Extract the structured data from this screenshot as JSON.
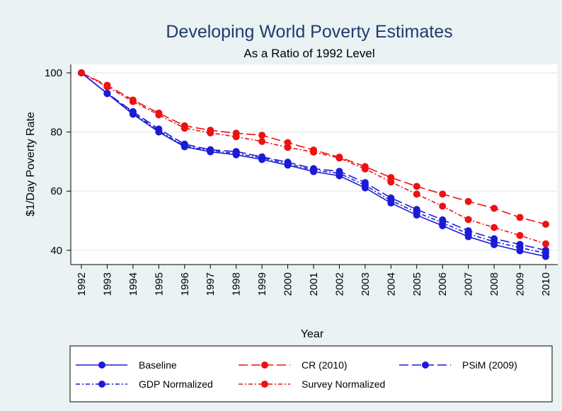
{
  "chart_data": {
    "type": "line",
    "title": "Developing World Poverty Estimates",
    "subtitle": "As a Ratio of 1992 Level",
    "xlabel": "Year",
    "ylabel": "$1/Day Poverty Rate",
    "ylim": [
      37,
      102
    ],
    "yticks": [
      40,
      60,
      80,
      100
    ],
    "x": [
      "1992",
      "1993",
      "1994",
      "1995",
      "1996",
      "1997",
      "1998",
      "1999",
      "2000",
      "2001",
      "2002",
      "2003",
      "2004",
      "2005",
      "2006",
      "2007",
      "2008",
      "2009",
      "2010"
    ],
    "grid": true,
    "legend_position": "bottom",
    "series": [
      {
        "name": "Baseline",
        "color": "#1b1bd6",
        "dash": "solid",
        "values": [
          100,
          93,
          86,
          80,
          75,
          73.3,
          72.3,
          70.7,
          68.8,
          66.6,
          65.2,
          61.1,
          56.0,
          51.9,
          48.3,
          44.6,
          41.9,
          39.8,
          37.9
        ]
      },
      {
        "name": "CR (2010)",
        "color": "#ee1111",
        "dash": "longdash",
        "values": [
          100,
          95.8,
          90.8,
          86.4,
          82.1,
          80.6,
          79.6,
          78.9,
          76.4,
          73.9,
          71.5,
          68.3,
          64.6,
          61.6,
          59.0,
          56.5,
          54.2,
          51.1,
          48.8
        ]
      },
      {
        "name": "PSiM (2009)",
        "color": "#1b1bd6",
        "dash": "longdash",
        "values": [
          100,
          93.1,
          86.9,
          81.0,
          75.9,
          74.0,
          73.4,
          71.6,
          69.8,
          67.6,
          66.7,
          62.9,
          57.7,
          53.8,
          50.3,
          46.6,
          43.9,
          42.0,
          40.0
        ]
      },
      {
        "name": "GDP Normalized",
        "color": "#1b1bd6",
        "dash": "dashdot",
        "values": [
          100,
          93,
          86.4,
          80.4,
          75.3,
          73.7,
          72.8,
          71.2,
          69.3,
          67.1,
          66.0,
          62.0,
          56.8,
          52.8,
          49.3,
          45.6,
          42.9,
          40.9,
          39.0
        ]
      },
      {
        "name": "Survey Normalized",
        "color": "#ee1111",
        "dash": "dashdot",
        "values": [
          100,
          95.3,
          90.3,
          85.8,
          81.3,
          79.7,
          78.4,
          76.8,
          74.8,
          73.2,
          71.2,
          67.5,
          63.1,
          59.0,
          54.9,
          50.4,
          47.7,
          45.0,
          42.2
        ]
      }
    ]
  }
}
